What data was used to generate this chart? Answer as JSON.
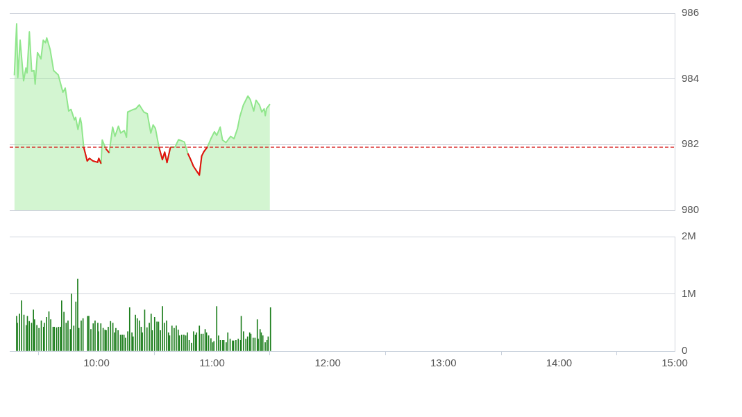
{
  "chart_data": [
    {
      "type": "area",
      "x": [
        9.29,
        9.31,
        9.32,
        9.34,
        9.37,
        9.39,
        9.4,
        9.42,
        9.44,
        9.46,
        9.47,
        9.49,
        9.52,
        9.54,
        9.56,
        9.57,
        9.6,
        9.63,
        9.67,
        9.71,
        9.73,
        9.76,
        9.78,
        9.81,
        9.82,
        9.84,
        9.86,
        9.87,
        9.89,
        9.92,
        9.94,
        9.97,
        10.01,
        10.02,
        10.04,
        10.05,
        10.08,
        10.11,
        10.14,
        10.16,
        10.19,
        10.21,
        10.24,
        10.26,
        10.27,
        10.32,
        10.34,
        10.37,
        10.41,
        10.44,
        10.47,
        10.49,
        10.51,
        10.54,
        10.57,
        10.59,
        10.61,
        10.64,
        10.68,
        10.71,
        10.74,
        10.76,
        10.79,
        10.81,
        10.84,
        10.89,
        10.91,
        10.93,
        10.96,
        10.99,
        11.02,
        11.04,
        11.07,
        11.09,
        11.12,
        11.16,
        11.19,
        11.22,
        11.24,
        11.27,
        11.31,
        11.33,
        11.36,
        11.38,
        11.41,
        11.43,
        11.45,
        11.46,
        11.47,
        11.5
      ],
      "series": [
        {
          "color": "#90e68c",
          "values": [
            984.11,
            985.68,
            984.04,
            985.18,
            983.94,
            984.33,
            984.18,
            985.43,
            984.23,
            984.25,
            983.84,
            984.8,
            984.61,
            985.18,
            985.1,
            985.25,
            984.89,
            984.25,
            984.12,
            983.59,
            983.72,
            983.02,
            983.07,
            982.75,
            982.83,
            982.46,
            982.81,
            982.64,
            981.92,
            981.5,
            981.58,
            981.5,
            981.46,
            981.58,
            981.42,
            982.14,
            981.88,
            981.75,
            982.53,
            982.25,
            982.56,
            982.35,
            982.43,
            982.22,
            982.99,
            983.07,
            983.09,
            983.21,
            982.99,
            982.94,
            982.35,
            982.6,
            982.49,
            981.93,
            981.54,
            981.77,
            981.45,
            981.92,
            981.93,
            982.15,
            982.11,
            982.08,
            981.73,
            981.58,
            981.33,
            981.07,
            981.65,
            981.79,
            981.93,
            982.18,
            982.39,
            982.28,
            982.53,
            982.14,
            982.06,
            982.25,
            982.18,
            982.49,
            982.85,
            983.2,
            983.48,
            983.37,
            983.02,
            983.35,
            983.2,
            982.99,
            983.09,
            982.88,
            983.09,
            983.23
          ]
        },
        {
          "type": "line",
          "color": "#e60d0d",
          "values": [
            null,
            null,
            null,
            null,
            null,
            null,
            null,
            null,
            null,
            null,
            null,
            null,
            null,
            null,
            null,
            null,
            null,
            null,
            null,
            null,
            null,
            null,
            null,
            null,
            null,
            null,
            null,
            null,
            981.92,
            981.5,
            981.58,
            981.5,
            981.46,
            981.58,
            981.42,
            null,
            981.88,
            981.75,
            null,
            null,
            null,
            null,
            null,
            null,
            null,
            null,
            null,
            null,
            null,
            null,
            null,
            null,
            null,
            981.93,
            981.54,
            981.77,
            981.45,
            981.92,
            null,
            null,
            null,
            null,
            981.73,
            981.58,
            981.33,
            981.07,
            981.65,
            981.79,
            981.93,
            null,
            null,
            null,
            null,
            null,
            null,
            null,
            null,
            null,
            null,
            null,
            null,
            null,
            null,
            null,
            null,
            null,
            null,
            null,
            null,
            null
          ]
        }
      ],
      "xlim": [
        9.25,
        15
      ],
      "ylim": [
        980,
        986
      ],
      "yticks": [
        980,
        982,
        984,
        986
      ],
      "grid": "y",
      "tick_labels": "y",
      "ref_lines": [
        {
          "axis": "y",
          "value": 981.92,
          "color": "#d81e1e",
          "line_style": "dashed"
        }
      ]
    },
    {
      "type": "bar",
      "x": [
        9.31,
        9.316,
        9.335,
        9.353,
        9.373,
        9.393,
        9.403,
        9.419,
        9.439,
        9.455,
        9.465,
        9.485,
        9.503,
        9.523,
        9.543,
        9.549,
        9.569,
        9.589,
        9.605,
        9.625,
        9.635,
        9.655,
        9.672,
        9.689,
        9.699,
        9.719,
        9.738,
        9.754,
        9.774,
        9.784,
        9.804,
        9.822,
        9.838,
        9.848,
        9.868,
        9.884,
        9.924,
        9.934,
        9.952,
        9.972,
        9.988,
        10.012,
        10.018,
        10.038,
        10.058,
        10.074,
        10.084,
        10.102,
        10.122,
        10.142,
        10.157,
        10.168,
        10.187,
        10.208,
        10.223,
        10.238,
        10.251,
        10.271,
        10.287,
        10.307,
        10.317,
        10.337,
        10.353,
        10.371,
        10.387,
        10.397,
        10.417,
        10.437,
        10.457,
        10.473,
        10.483,
        10.503,
        10.523,
        10.537,
        10.553,
        10.571,
        10.587,
        10.607,
        10.623,
        10.633,
        10.653,
        10.672,
        10.69,
        10.707,
        10.717,
        10.737,
        10.756,
        10.772,
        10.786,
        10.802,
        10.822,
        10.84,
        10.856,
        10.866,
        10.89,
        10.906,
        10.922,
        10.94,
        10.952,
        10.97,
        10.99,
        11.006,
        11.016,
        11.04,
        11.056,
        11.072,
        11.092,
        11.102,
        11.122,
        11.136,
        11.156,
        11.176,
        11.186,
        11.206,
        11.226,
        11.246,
        11.252,
        11.272,
        11.292,
        11.307,
        11.325,
        11.335,
        11.355,
        11.371,
        11.391,
        11.399,
        11.415,
        11.425,
        11.439,
        11.459,
        11.475,
        11.485,
        11.505
      ],
      "series": [
        {
          "color": "#1b7d1b",
          "values": [
            0.61,
            0.49,
            0.65,
            0.88,
            0.63,
            0.45,
            0.61,
            0.52,
            0.49,
            0.72,
            0.55,
            0.45,
            0.4,
            0.53,
            0.42,
            0.49,
            0.59,
            0.69,
            0.55,
            0.42,
            0.42,
            0.41,
            0.42,
            0.42,
            0.88,
            0.68,
            0.49,
            0.53,
            0.38,
            1.0,
            0.44,
            0.86,
            1.26,
            0.4,
            0.53,
            0.57,
            0.61,
            0.61,
            0.38,
            0.48,
            0.53,
            0.49,
            0.34,
            0.48,
            0.4,
            0.37,
            0.36,
            0.42,
            0.52,
            0.49,
            0.32,
            0.4,
            0.36,
            0.28,
            0.28,
            0.28,
            0.23,
            0.34,
            0.76,
            0.32,
            0.25,
            0.63,
            0.57,
            0.53,
            0.42,
            0.32,
            0.72,
            0.41,
            0.49,
            0.65,
            0.36,
            0.59,
            0.51,
            0.51,
            0.36,
            0.78,
            0.49,
            0.53,
            0.32,
            0.27,
            0.44,
            0.4,
            0.44,
            0.37,
            0.27,
            0.28,
            0.28,
            0.27,
            0.32,
            0.19,
            0.14,
            0.34,
            0.28,
            0.32,
            0.44,
            0.3,
            0.3,
            0.38,
            0.32,
            0.27,
            0.22,
            0.15,
            0.17,
            0.78,
            0.27,
            0.19,
            0.19,
            0.19,
            0.15,
            0.32,
            0.21,
            0.18,
            0.18,
            0.19,
            0.21,
            0.19,
            0.61,
            0.34,
            0.21,
            0.25,
            0.32,
            0.3,
            0.23,
            0.23,
            0.55,
            0.21,
            0.38,
            0.32,
            0.27,
            0.15,
            0.19,
            0.25,
            0.76
          ]
        }
      ],
      "xlim": [
        9.25,
        15
      ],
      "xticks": [
        {
          "value": 10,
          "label": "10:00"
        },
        {
          "value": 11,
          "label": "11:00"
        },
        {
          "value": 12,
          "label": "12:00"
        },
        {
          "value": 13,
          "label": "13:00"
        },
        {
          "value": 14,
          "label": "14:00"
        },
        {
          "value": 15,
          "label": "15:00"
        }
      ],
      "ylim": [
        0,
        2
      ],
      "yticks": [
        {
          "value": 0,
          "label": "0"
        },
        {
          "value": 1,
          "label": "1M"
        },
        {
          "value": 2,
          "label": "2M"
        }
      ],
      "grid": "y"
    }
  ]
}
